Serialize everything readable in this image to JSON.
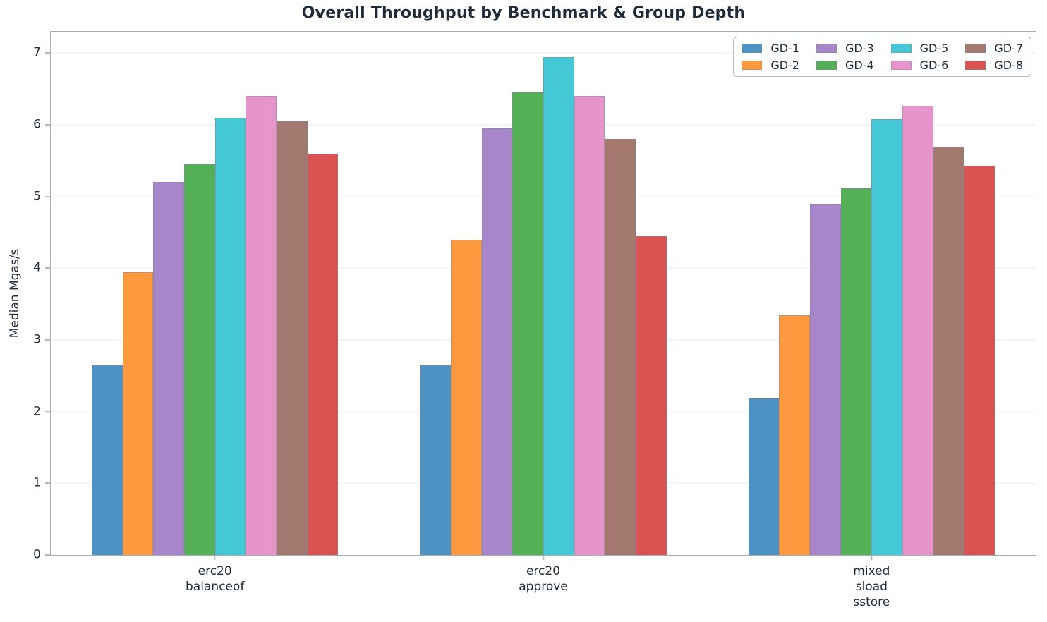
{
  "chart_data": {
    "type": "bar",
    "title": "Overall Throughput by Benchmark & Group Depth",
    "xlabel": "",
    "ylabel": "Median Mgas/s",
    "ylim": [
      0,
      7.3
    ],
    "yticks": [
      0,
      1,
      2,
      3,
      4,
      5,
      6,
      7
    ],
    "xlim": [
      -0.5,
      2.5
    ],
    "bar_width": 0.09375,
    "grid": "horizontal",
    "legend_position": "upper right",
    "categories": [
      "erc20\nbalanceof",
      "erc20\napprove",
      "mixed\nsload\nsstore"
    ],
    "series": [
      {
        "name": "GD-1",
        "color": "#4C92C3",
        "values": [
          2.65,
          2.65,
          2.18
        ]
      },
      {
        "name": "GD-2",
        "color": "#FF9940",
        "values": [
          3.95,
          4.4,
          3.35
        ]
      },
      {
        "name": "GD-3",
        "color": "#A886CA",
        "values": [
          5.2,
          5.95,
          4.9
        ]
      },
      {
        "name": "GD-4",
        "color": "#54B056",
        "values": [
          5.45,
          6.45,
          5.12
        ]
      },
      {
        "name": "GD-5",
        "color": "#45C8D6",
        "values": [
          6.1,
          6.95,
          6.08
        ]
      },
      {
        "name": "GD-6",
        "color": "#E894CC",
        "values": [
          6.4,
          6.4,
          6.27
        ]
      },
      {
        "name": "GD-7",
        "color": "#A3786F",
        "values": [
          6.05,
          5.8,
          5.7
        ]
      },
      {
        "name": "GD-8",
        "color": "#DC5253",
        "values": [
          5.6,
          4.45,
          5.43
        ]
      }
    ],
    "colors": {
      "axis": "#a6aebc",
      "grid": "#f2f3f6",
      "text": "#222d3d",
      "title": "#1f2a3a"
    }
  }
}
